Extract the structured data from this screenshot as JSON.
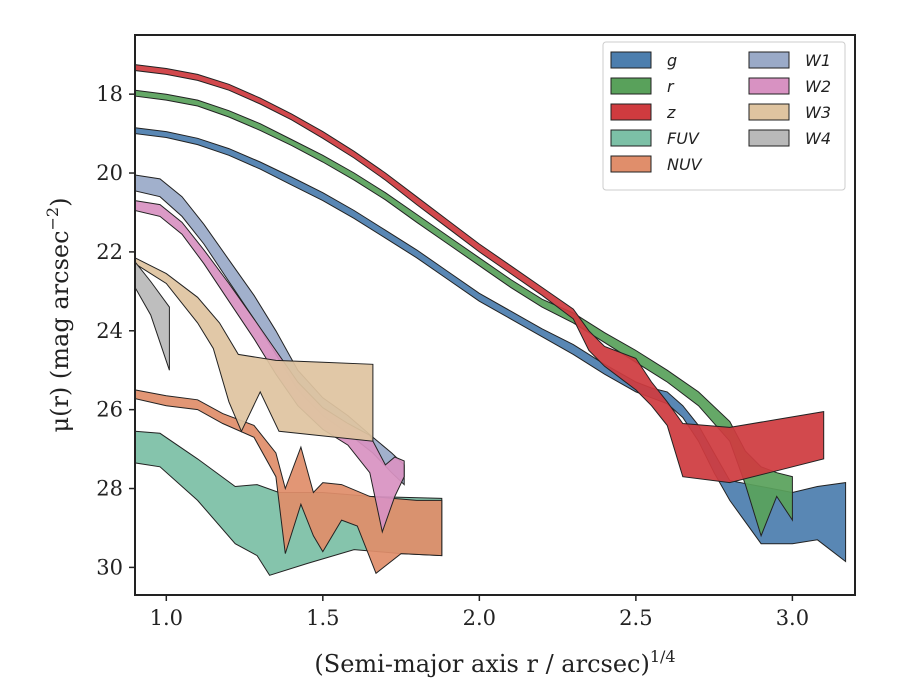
{
  "chart_data": {
    "type": "area",
    "xlabel": "(Semi-major axis r / arcsec)",
    "xlabel_exponent": "1/4",
    "ylabel": "μ(r) (mag arcsec",
    "ylabel_exponent": "−2",
    "ylabel_close": ")",
    "xlim": [
      0.9,
      3.2
    ],
    "ylim": [
      30.7,
      16.5
    ],
    "y_inverted": true,
    "xticks": [
      1.0,
      1.5,
      2.0,
      2.5,
      3.0
    ],
    "xtick_labels": [
      "1.0",
      "1.5",
      "2.0",
      "2.5",
      "3.0"
    ],
    "yticks": [
      18,
      20,
      22,
      24,
      26,
      28,
      30
    ],
    "ytick_labels": [
      "18",
      "20",
      "22",
      "24",
      "26",
      "28",
      "30"
    ],
    "grid": false,
    "legend_position": "top-right",
    "legend_columns": 2,
    "series": [
      {
        "name": "g",
        "color": "#4c7eae",
        "upper": [
          [
            0.9,
            18.85
          ],
          [
            1.0,
            18.95
          ],
          [
            1.1,
            19.12
          ],
          [
            1.2,
            19.38
          ],
          [
            1.3,
            19.72
          ],
          [
            1.4,
            20.1
          ],
          [
            1.5,
            20.5
          ],
          [
            1.6,
            20.95
          ],
          [
            1.7,
            21.45
          ],
          [
            1.8,
            21.95
          ],
          [
            1.9,
            22.5
          ],
          [
            2.0,
            23.05
          ],
          [
            2.1,
            23.5
          ],
          [
            2.2,
            23.95
          ],
          [
            2.3,
            24.35
          ],
          [
            2.4,
            24.85
          ],
          [
            2.5,
            25.3
          ],
          [
            2.55,
            25.45
          ],
          [
            2.6,
            25.55
          ],
          [
            2.65,
            25.9
          ],
          [
            2.7,
            26.4
          ],
          [
            2.75,
            27.1
          ],
          [
            2.8,
            27.8
          ],
          [
            2.9,
            27.95
          ],
          [
            3.0,
            28.1
          ],
          [
            3.08,
            27.95
          ],
          [
            3.17,
            27.85
          ]
        ],
        "lower": [
          [
            0.9,
            19.0
          ],
          [
            1.0,
            19.1
          ],
          [
            1.1,
            19.28
          ],
          [
            1.2,
            19.55
          ],
          [
            1.3,
            19.9
          ],
          [
            1.4,
            20.3
          ],
          [
            1.5,
            20.7
          ],
          [
            1.6,
            21.15
          ],
          [
            1.7,
            21.65
          ],
          [
            1.8,
            22.15
          ],
          [
            1.9,
            22.7
          ],
          [
            2.0,
            23.25
          ],
          [
            2.1,
            23.7
          ],
          [
            2.2,
            24.15
          ],
          [
            2.3,
            24.6
          ],
          [
            2.4,
            25.1
          ],
          [
            2.5,
            25.55
          ],
          [
            2.55,
            25.7
          ],
          [
            2.6,
            25.85
          ],
          [
            2.65,
            26.2
          ],
          [
            2.7,
            26.8
          ],
          [
            2.75,
            27.6
          ],
          [
            2.8,
            28.3
          ],
          [
            2.9,
            29.4
          ],
          [
            3.0,
            29.4
          ],
          [
            3.08,
            29.3
          ],
          [
            3.17,
            29.85
          ]
        ]
      },
      {
        "name": "r",
        "color": "#59a15b",
        "upper": [
          [
            0.9,
            17.9
          ],
          [
            1.0,
            18.0
          ],
          [
            1.1,
            18.15
          ],
          [
            1.2,
            18.42
          ],
          [
            1.3,
            18.75
          ],
          [
            1.4,
            19.15
          ],
          [
            1.5,
            19.55
          ],
          [
            1.6,
            20.0
          ],
          [
            1.7,
            20.5
          ],
          [
            1.8,
            21.05
          ],
          [
            1.9,
            21.6
          ],
          [
            2.0,
            22.15
          ],
          [
            2.1,
            22.7
          ],
          [
            2.2,
            23.2
          ],
          [
            2.3,
            23.55
          ],
          [
            2.4,
            24.05
          ],
          [
            2.5,
            24.5
          ],
          [
            2.6,
            25.0
          ],
          [
            2.7,
            25.55
          ],
          [
            2.8,
            26.3
          ],
          [
            2.85,
            27.05
          ],
          [
            2.9,
            27.45
          ],
          [
            2.95,
            27.6
          ],
          [
            3.0,
            27.7
          ]
        ],
        "lower": [
          [
            0.9,
            18.05
          ],
          [
            1.0,
            18.15
          ],
          [
            1.1,
            18.3
          ],
          [
            1.2,
            18.58
          ],
          [
            1.3,
            18.92
          ],
          [
            1.4,
            19.3
          ],
          [
            1.5,
            19.72
          ],
          [
            1.6,
            20.18
          ],
          [
            1.7,
            20.68
          ],
          [
            1.8,
            21.25
          ],
          [
            1.9,
            21.8
          ],
          [
            2.0,
            22.35
          ],
          [
            2.1,
            22.9
          ],
          [
            2.2,
            23.4
          ],
          [
            2.3,
            23.8
          ],
          [
            2.4,
            24.3
          ],
          [
            2.5,
            24.8
          ],
          [
            2.6,
            25.3
          ],
          [
            2.7,
            25.9
          ],
          [
            2.8,
            26.8
          ],
          [
            2.85,
            27.9
          ],
          [
            2.9,
            29.2
          ],
          [
            2.95,
            28.2
          ],
          [
            3.0,
            28.8
          ]
        ]
      },
      {
        "name": "z",
        "color": "#cf3b3f",
        "upper": [
          [
            0.9,
            17.25
          ],
          [
            1.0,
            17.35
          ],
          [
            1.1,
            17.5
          ],
          [
            1.2,
            17.75
          ],
          [
            1.3,
            18.1
          ],
          [
            1.4,
            18.5
          ],
          [
            1.5,
            18.95
          ],
          [
            1.6,
            19.45
          ],
          [
            1.7,
            20.0
          ],
          [
            1.8,
            20.6
          ],
          [
            1.9,
            21.2
          ],
          [
            2.0,
            21.8
          ],
          [
            2.1,
            22.35
          ],
          [
            2.2,
            22.9
          ],
          [
            2.3,
            23.45
          ],
          [
            2.35,
            24.0
          ],
          [
            2.4,
            24.4
          ],
          [
            2.5,
            24.7
          ],
          [
            2.55,
            25.3
          ],
          [
            2.6,
            25.8
          ],
          [
            2.65,
            26.35
          ],
          [
            2.8,
            26.45
          ],
          [
            2.95,
            26.25
          ],
          [
            3.1,
            26.05
          ]
        ],
        "lower": [
          [
            0.9,
            17.4
          ],
          [
            1.0,
            17.5
          ],
          [
            1.1,
            17.65
          ],
          [
            1.2,
            17.9
          ],
          [
            1.3,
            18.25
          ],
          [
            1.4,
            18.65
          ],
          [
            1.5,
            19.12
          ],
          [
            1.6,
            19.62
          ],
          [
            1.7,
            20.18
          ],
          [
            1.8,
            20.8
          ],
          [
            1.9,
            21.4
          ],
          [
            2.0,
            22.0
          ],
          [
            2.1,
            22.55
          ],
          [
            2.2,
            23.1
          ],
          [
            2.3,
            23.7
          ],
          [
            2.35,
            24.5
          ],
          [
            2.4,
            24.9
          ],
          [
            2.5,
            25.5
          ],
          [
            2.55,
            25.9
          ],
          [
            2.6,
            26.4
          ],
          [
            2.65,
            27.7
          ],
          [
            2.8,
            27.85
          ],
          [
            2.95,
            27.55
          ],
          [
            3.1,
            27.25
          ]
        ]
      },
      {
        "name": "FUV",
        "color": "#7cc0a6",
        "upper": [
          [
            0.9,
            26.55
          ],
          [
            0.98,
            26.6
          ],
          [
            1.1,
            27.25
          ],
          [
            1.22,
            27.95
          ],
          [
            1.29,
            27.9
          ],
          [
            1.36,
            28.1
          ],
          [
            1.5,
            28.1
          ],
          [
            1.65,
            28.2
          ],
          [
            1.88,
            28.25
          ]
        ],
        "lower": [
          [
            0.9,
            27.35
          ],
          [
            0.98,
            27.45
          ],
          [
            1.1,
            28.3
          ],
          [
            1.22,
            29.4
          ],
          [
            1.29,
            29.7
          ],
          [
            1.33,
            30.2
          ],
          [
            1.45,
            29.9
          ],
          [
            1.6,
            29.55
          ],
          [
            1.75,
            29.65
          ],
          [
            1.88,
            29.7
          ]
        ]
      },
      {
        "name": "NUV",
        "color": "#e08e6b",
        "upper": [
          [
            0.9,
            25.5
          ],
          [
            1.0,
            25.65
          ],
          [
            1.1,
            25.75
          ],
          [
            1.18,
            26.1
          ],
          [
            1.28,
            26.4
          ],
          [
            1.35,
            27.1
          ],
          [
            1.38,
            28.0
          ],
          [
            1.43,
            26.95
          ],
          [
            1.47,
            28.1
          ],
          [
            1.5,
            27.85
          ],
          [
            1.56,
            27.9
          ],
          [
            1.65,
            28.2
          ],
          [
            1.8,
            28.3
          ],
          [
            1.88,
            28.3
          ]
        ],
        "lower": [
          [
            0.9,
            25.72
          ],
          [
            1.0,
            25.9
          ],
          [
            1.1,
            26.0
          ],
          [
            1.18,
            26.35
          ],
          [
            1.28,
            26.7
          ],
          [
            1.35,
            27.7
          ],
          [
            1.38,
            29.65
          ],
          [
            1.43,
            28.4
          ],
          [
            1.47,
            29.2
          ],
          [
            1.5,
            29.6
          ],
          [
            1.56,
            28.8
          ],
          [
            1.61,
            28.95
          ],
          [
            1.67,
            30.15
          ],
          [
            1.75,
            29.65
          ],
          [
            1.88,
            29.7
          ]
        ]
      },
      {
        "name": "W1",
        "color": "#9aaac8",
        "upper": [
          [
            0.9,
            20.05
          ],
          [
            0.98,
            20.15
          ],
          [
            1.05,
            20.6
          ],
          [
            1.12,
            21.3
          ],
          [
            1.2,
            22.2
          ],
          [
            1.28,
            23.1
          ],
          [
            1.35,
            24.0
          ],
          [
            1.42,
            25.0
          ],
          [
            1.5,
            25.7
          ],
          [
            1.58,
            26.15
          ],
          [
            1.66,
            26.7
          ],
          [
            1.72,
            27.1
          ],
          [
            1.76,
            27.4
          ]
        ],
        "lower": [
          [
            0.9,
            20.45
          ],
          [
            0.98,
            20.6
          ],
          [
            1.05,
            21.1
          ],
          [
            1.12,
            21.8
          ],
          [
            1.2,
            22.75
          ],
          [
            1.28,
            23.7
          ],
          [
            1.35,
            24.6
          ],
          [
            1.42,
            25.5
          ],
          [
            1.5,
            26.15
          ],
          [
            1.58,
            26.6
          ],
          [
            1.66,
            27.1
          ],
          [
            1.72,
            27.6
          ],
          [
            1.76,
            27.9
          ]
        ]
      },
      {
        "name": "W2",
        "color": "#d892c2",
        "upper": [
          [
            0.9,
            20.7
          ],
          [
            0.98,
            20.8
          ],
          [
            1.05,
            21.25
          ],
          [
            1.12,
            21.95
          ],
          [
            1.2,
            22.8
          ],
          [
            1.28,
            23.7
          ],
          [
            1.35,
            24.5
          ],
          [
            1.42,
            25.3
          ],
          [
            1.5,
            25.95
          ],
          [
            1.58,
            26.35
          ],
          [
            1.65,
            26.65
          ],
          [
            1.7,
            27.4
          ],
          [
            1.73,
            27.2
          ],
          [
            1.76,
            27.3
          ]
        ],
        "lower": [
          [
            0.9,
            20.95
          ],
          [
            0.98,
            21.1
          ],
          [
            1.05,
            21.55
          ],
          [
            1.12,
            22.3
          ],
          [
            1.2,
            23.25
          ],
          [
            1.28,
            24.2
          ],
          [
            1.35,
            25.1
          ],
          [
            1.42,
            25.9
          ],
          [
            1.5,
            26.5
          ],
          [
            1.58,
            26.9
          ],
          [
            1.65,
            27.6
          ],
          [
            1.69,
            29.1
          ],
          [
            1.73,
            28.2
          ],
          [
            1.76,
            27.7
          ]
        ]
      },
      {
        "name": "W3",
        "color": "#dfc4a0",
        "upper": [
          [
            0.9,
            22.15
          ],
          [
            1.0,
            22.55
          ],
          [
            1.1,
            23.15
          ],
          [
            1.17,
            23.8
          ],
          [
            1.23,
            24.6
          ],
          [
            1.35,
            24.75
          ],
          [
            1.5,
            24.8
          ],
          [
            1.66,
            24.85
          ]
        ],
        "lower": [
          [
            0.9,
            22.3
          ],
          [
            1.0,
            22.8
          ],
          [
            1.1,
            23.8
          ],
          [
            1.15,
            24.45
          ],
          [
            1.2,
            25.8
          ],
          [
            1.24,
            26.55
          ],
          [
            1.3,
            25.55
          ],
          [
            1.36,
            26.55
          ],
          [
            1.66,
            26.8
          ]
        ]
      },
      {
        "name": "W4",
        "color": "#b9b9b9",
        "upper": [
          [
            0.9,
            22.25
          ],
          [
            0.95,
            22.75
          ],
          [
            1.01,
            23.4
          ]
        ],
        "lower": [
          [
            0.9,
            22.9
          ],
          [
            0.95,
            23.6
          ],
          [
            1.01,
            25.0
          ]
        ]
      }
    ]
  },
  "legend": {
    "col1": [
      "g",
      "r",
      "z",
      "FUV",
      "NUV"
    ],
    "col2": [
      "W1",
      "W2",
      "W3",
      "W4"
    ]
  }
}
